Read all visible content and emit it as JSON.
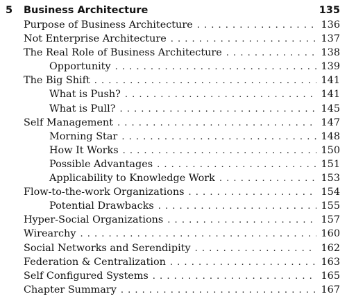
{
  "chapter": {
    "number": "5",
    "title": "Business Architecture",
    "page": "135"
  },
  "entries": [
    {
      "label": "Purpose of Business Architecture",
      "page": "136",
      "level": 1
    },
    {
      "label": "Not Enterprise Architecture",
      "page": "137",
      "level": 1
    },
    {
      "label": "The Real Role of Business Architecture",
      "page": "138",
      "level": 1
    },
    {
      "label": "Opportunity",
      "page": "139",
      "level": 2
    },
    {
      "label": "The Big Shift",
      "page": "141",
      "level": 1
    },
    {
      "label": "What is Push?",
      "page": "141",
      "level": 2
    },
    {
      "label": "What is Pull?",
      "page": "145",
      "level": 2
    },
    {
      "label": "Self Management",
      "page": "147",
      "level": 1
    },
    {
      "label": "Morning Star",
      "page": "148",
      "level": 2
    },
    {
      "label": "How It Works",
      "page": "150",
      "level": 2
    },
    {
      "label": "Possible Advantages",
      "page": "151",
      "level": 2
    },
    {
      "label": "Applicability to Knowledge Work",
      "page": "153",
      "level": 2
    },
    {
      "label": "Flow-to-the-work Organizations",
      "page": "154",
      "level": 1
    },
    {
      "label": "Potential Drawbacks",
      "page": "155",
      "level": 2
    },
    {
      "label": "Hyper-Social Organizations",
      "page": "157",
      "level": 1
    },
    {
      "label": "Wirearchy",
      "page": "160",
      "level": 1
    },
    {
      "label": "Social Networks and Serendipity",
      "page": "162",
      "level": 1
    },
    {
      "label": "Federation & Centralization",
      "page": "163",
      "level": 1
    },
    {
      "label": "Self Configured Systems",
      "page": "165",
      "level": 1
    },
    {
      "label": "Chapter Summary",
      "page": "167",
      "level": 1
    }
  ]
}
